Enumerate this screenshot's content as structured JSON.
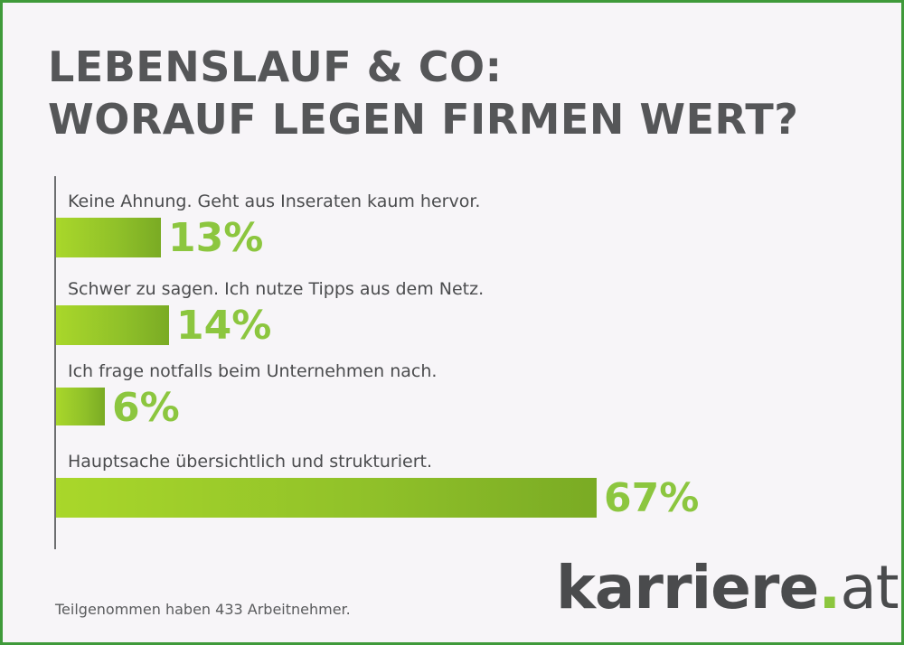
{
  "title": {
    "line1": "LEBENSLAUF & CO:",
    "line2": "WORAUF LEGEN FIRMEN WERT?"
  },
  "colors": {
    "bar": "#8fc029",
    "percent": "#8cc63f",
    "title": "#555658",
    "border": "#3f9a3a"
  },
  "chart_data": {
    "type": "bar",
    "orientation": "horizontal",
    "title": "LEBENSLAUF & CO: WORAUF LEGEN FIRMEN WERT?",
    "unit": "%",
    "categories": [
      "Keine Ahnung. Geht aus Inseraten kaum hervor.",
      "Schwer zu sagen. Ich nutze Tipps aus dem Netz.",
      "Ich frage notfalls beim Unternehmen nach.",
      "Hauptsache übersichtlich und strukturiert."
    ],
    "values": [
      13,
      14,
      6,
      67
    ],
    "value_labels": [
      "13%",
      "14%",
      "6%",
      "67%"
    ],
    "grid": false,
    "legend": "none"
  },
  "footnote": "Teilgenommen haben 433 Arbeitnehmer.",
  "logo": {
    "name": "karriere",
    "dot": ".",
    "tld": "at"
  }
}
